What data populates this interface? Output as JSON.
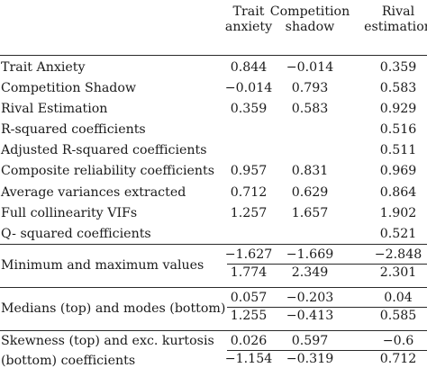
{
  "headers": [
    "Trait\nanxiety",
    "Competition\nshadow",
    "Rival\nestimation"
  ],
  "rows": [
    {
      "label": "Trait Anxiety",
      "values": [
        "0.844",
        "−0.014",
        "0.359"
      ]
    },
    {
      "label": "Competition Shadow",
      "values": [
        "−0.014",
        "0.793",
        "0.583"
      ]
    },
    {
      "label": "Rival Estimation",
      "values": [
        "0.359",
        "0.583",
        "0.929"
      ]
    },
    {
      "label": "R-squared coefficients",
      "values": [
        "",
        "",
        "0.516"
      ]
    },
    {
      "label": "Adjusted R-squared coefficients",
      "values": [
        "",
        "",
        "0.511"
      ]
    },
    {
      "label": "Composite reliability coefficients",
      "values": [
        "0.957",
        "0.831",
        "0.969"
      ]
    },
    {
      "label": "Average variances extracted",
      "values": [
        "0.712",
        "0.629",
        "0.864"
      ]
    },
    {
      "label": "Full collinearity VIFs",
      "values": [
        "1.257",
        "1.657",
        "1.902"
      ]
    },
    {
      "label": "Q- squared coefficients",
      "values": [
        "",
        "",
        "0.521"
      ]
    }
  ],
  "groups": [
    {
      "label": "Minimum and maximum values",
      "label_lines": [],
      "top": [
        "−1.627",
        "−1.669",
        "−2.848"
      ],
      "bottom": [
        "1.774",
        "2.349",
        "2.301"
      ]
    },
    {
      "label": "Medians (top) and modes (bottom)",
      "label_lines": [],
      "top": [
        "0.057",
        "−0.203",
        "0.04"
      ],
      "bottom": [
        "1.255",
        "−0.413",
        "0.585"
      ]
    },
    {
      "label": "",
      "label_lines": [
        "Skewness (top) and exc. kurtosis",
        "(bottom) coefficients"
      ],
      "top": [
        "0.026",
        "0.597",
        "−0.6"
      ],
      "bottom": [
        "−1.154",
        "−0.319",
        "0.712"
      ]
    }
  ]
}
